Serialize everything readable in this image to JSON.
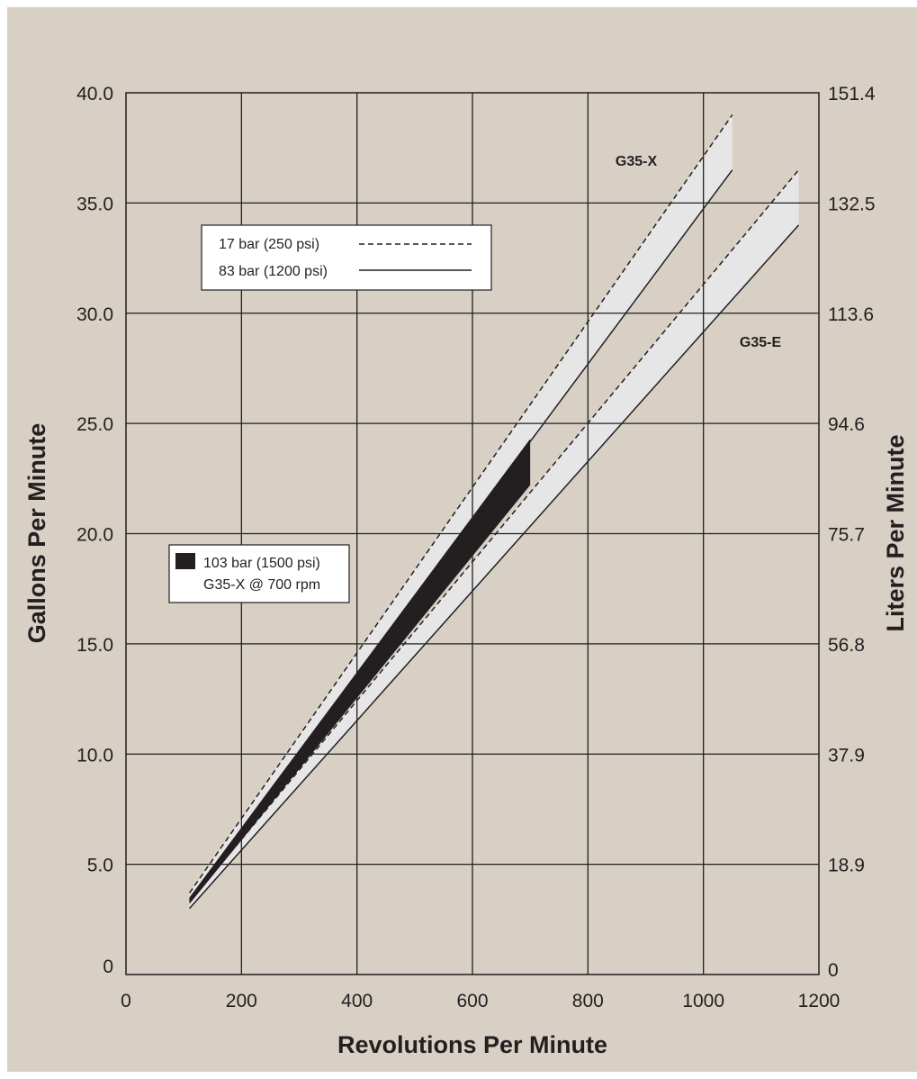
{
  "chart_data": {
    "type": "line",
    "xlabel": "Revolutions Per Minute",
    "ylabel": "Gallons Per Minute",
    "ylabel_right": "Liters Per Minute",
    "xlim": [
      0,
      1200
    ],
    "ylim": [
      0,
      40
    ],
    "x_ticks": [
      "0",
      "200",
      "400",
      "600",
      "800",
      "1000",
      "1200"
    ],
    "y_ticks": [
      "0",
      "5.0",
      "10.0",
      "15.0",
      "20.0",
      "25.0",
      "30.0",
      "35.0",
      "40.0"
    ],
    "y_ticks_right": [
      "0",
      "18.9",
      "37.9",
      "56.8",
      "75.7",
      "94.6",
      "113.6",
      "132.5",
      "151.4"
    ],
    "grid": true,
    "series": [
      {
        "name": "G35-X",
        "pressure": "17 bar (250 psi)",
        "style": "dashed",
        "x": [
          110,
          1050
        ],
        "y": [
          3.7,
          39.0
        ]
      },
      {
        "name": "G35-X",
        "pressure": "83 bar (1200 psi)",
        "style": "solid",
        "x": [
          110,
          1050
        ],
        "y": [
          3.4,
          36.5
        ]
      },
      {
        "name": "G35-E",
        "pressure": "17 bar (250 psi)",
        "style": "dashed",
        "x": [
          110,
          1165
        ],
        "y": [
          3.3,
          36.5
        ]
      },
      {
        "name": "G35-E",
        "pressure": "83 bar (1200 psi)",
        "style": "solid",
        "x": [
          110,
          1165
        ],
        "y": [
          3.0,
          34.0
        ]
      }
    ],
    "highlight": {
      "label": "103 bar (1500 psi)",
      "sublabel": "G35-X @ 700 rpm",
      "upper": {
        "x": [
          110,
          700
        ],
        "y": [
          3.5,
          24.3
        ]
      },
      "lower": {
        "x": [
          110,
          700
        ],
        "y": [
          3.2,
          22.2
        ]
      }
    },
    "annotations": [
      "G35-X",
      "G35-E"
    ],
    "legend": {
      "position": "top-left",
      "items": [
        {
          "label": "17 bar (250 psi)",
          "style": "dashed"
        },
        {
          "label": "83 bar (1200 psi)",
          "style": "solid"
        }
      ]
    },
    "colors": {
      "background": "#d8d0c5",
      "band": "#e6e6e7",
      "line": "#231f20",
      "highlight": "#231f20"
    }
  }
}
